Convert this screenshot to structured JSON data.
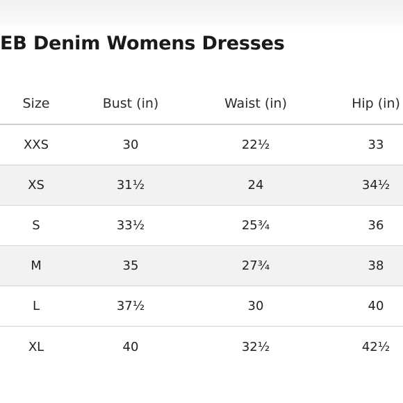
{
  "page": {
    "title": "EB Denim Womens Dresses"
  },
  "table": {
    "headers": [
      "Size",
      "Bust (in)",
      "Waist (in)",
      "Hip (in)"
    ],
    "rows": [
      [
        "XXS",
        "30",
        "22½",
        "33"
      ],
      [
        "XS",
        "31½",
        "24",
        "34½"
      ],
      [
        "S",
        "33½",
        "25¾",
        "36"
      ],
      [
        "M",
        "35",
        "27¾",
        "38"
      ],
      [
        "L",
        "37½",
        "30",
        "40"
      ],
      [
        "XL",
        "40",
        "32½",
        "42½"
      ]
    ],
    "colors": {
      "shaded_row": "#f2f2f2",
      "divider": "#d4d4d4",
      "text": "#222222"
    }
  }
}
